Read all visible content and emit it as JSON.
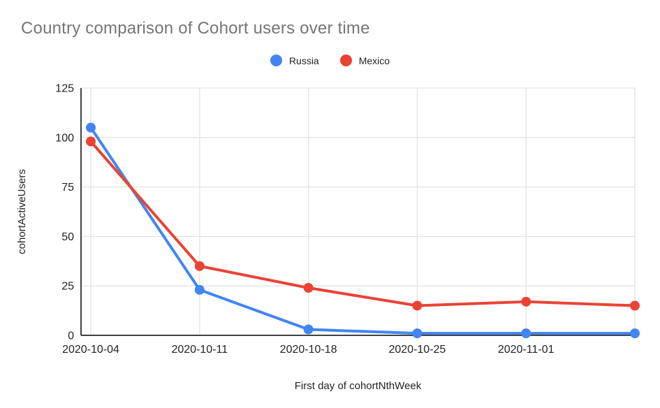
{
  "chart_data": {
    "type": "line",
    "title": "Country comparison of Cohort users over time",
    "xlabel": "First day of cohortNthWeek",
    "ylabel": "cohortActiveUsers",
    "x_tick_labels": [
      "2020-10-04",
      "2020-10-11",
      "2020-10-18",
      "2020-10-25",
      "2020-11-01"
    ],
    "num_points": 6,
    "series": [
      {
        "name": "Russia",
        "color": "#4285F4",
        "values": [
          105,
          23,
          3,
          1,
          1,
          1
        ]
      },
      {
        "name": "Mexico",
        "color": "#EA4335",
        "values": [
          98,
          35,
          24,
          15,
          17,
          15
        ]
      }
    ],
    "yticks": [
      0,
      25,
      50,
      75,
      100,
      125
    ],
    "ylim": [
      0,
      125
    ],
    "grid": "on",
    "legend_position": "top",
    "colors": {
      "title_text": "#757575",
      "axis_label_text": "#222222",
      "gridline": "#e3e3e3",
      "axis_line": "#424242"
    }
  }
}
